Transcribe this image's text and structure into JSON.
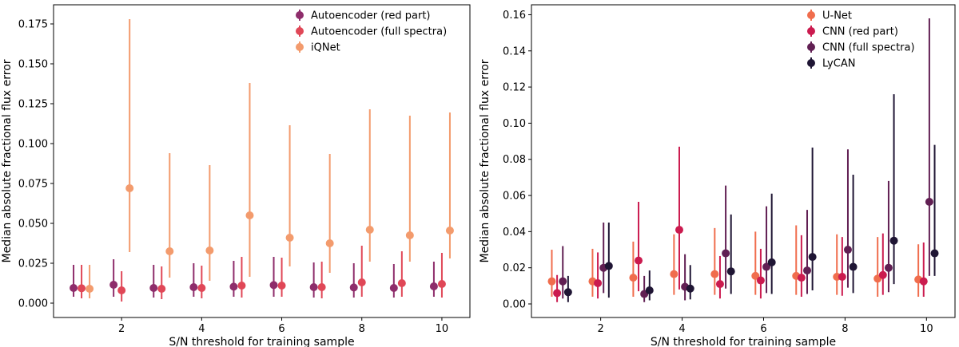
{
  "chart_data": [
    {
      "type": "errorbar",
      "panel": "left",
      "xlabel": "S/N threshold for training sample",
      "ylabel": "Median absolute fractional flux error",
      "xlim": [
        0.3,
        10.7
      ],
      "ylim": [
        -0.009,
        0.187
      ],
      "xticks": [
        2,
        4,
        6,
        8,
        10
      ],
      "yticks": [
        0.0,
        0.025,
        0.05,
        0.075,
        0.1,
        0.125,
        0.15,
        0.175
      ],
      "ytick_labels": [
        "0.000",
        "0.025",
        "0.050",
        "0.075",
        "0.100",
        "0.125",
        "0.150",
        "0.175"
      ],
      "legend_position": "top-right",
      "x": [
        1,
        2,
        3,
        4,
        5,
        6,
        7,
        8,
        9,
        10
      ],
      "series": [
        {
          "name": "Autoencoder (red part)",
          "color": "#8e2d6b",
          "offset": -0.2,
          "values": [
            0.0095,
            0.0115,
            0.0095,
            0.01,
            0.0103,
            0.0113,
            0.01,
            0.0098,
            0.0095,
            0.0105
          ],
          "low": [
            0.004,
            0.004,
            0.0035,
            0.004,
            0.004,
            0.004,
            0.0035,
            0.0035,
            0.0035,
            0.004
          ],
          "high": [
            0.024,
            0.0275,
            0.024,
            0.025,
            0.0265,
            0.029,
            0.0255,
            0.025,
            0.0245,
            0.026
          ]
        },
        {
          "name": "Autoencoder (full spectra)",
          "color": "#e04757",
          "offset": 0.0,
          "values": [
            0.0093,
            0.008,
            0.009,
            0.0095,
            0.011,
            0.011,
            0.01,
            0.013,
            0.0125,
            0.012
          ],
          "low": [
            0.003,
            0.001,
            0.0025,
            0.003,
            0.0035,
            0.004,
            0.003,
            0.004,
            0.004,
            0.0035
          ],
          "high": [
            0.024,
            0.02,
            0.023,
            0.0235,
            0.029,
            0.0285,
            0.026,
            0.036,
            0.0325,
            0.0315
          ]
        },
        {
          "name": "iQNet",
          "color": "#f39b6d",
          "offset": 0.2,
          "values": [
            0.009,
            0.072,
            0.0325,
            0.033,
            0.055,
            0.041,
            0.0375,
            0.046,
            0.0425,
            0.0455
          ],
          "low": [
            0.003,
            0.032,
            0.016,
            0.014,
            0.0165,
            0.023,
            0.019,
            0.026,
            0.026,
            0.028
          ],
          "high": [
            0.024,
            0.178,
            0.094,
            0.0865,
            0.138,
            0.1115,
            0.0935,
            0.1215,
            0.1175,
            0.1195
          ]
        }
      ]
    },
    {
      "type": "errorbar",
      "panel": "right",
      "xlabel": "S/N threshold for training sample",
      "ylabel": "Median absolute fractional flux error",
      "xlim": [
        0.3,
        10.7
      ],
      "ylim": [
        -0.0075,
        0.1655
      ],
      "xticks": [
        2,
        4,
        6,
        8,
        10
      ],
      "yticks": [
        0.0,
        0.02,
        0.04,
        0.06,
        0.08,
        0.1,
        0.12,
        0.14,
        0.16
      ],
      "ytick_labels": [
        "0.00",
        "0.02",
        "0.04",
        "0.06",
        "0.08",
        "0.10",
        "0.12",
        "0.14",
        "0.16"
      ],
      "legend_position": "top-right",
      "x": [
        1,
        2,
        3,
        4,
        5,
        6,
        7,
        8,
        9,
        10
      ],
      "series": [
        {
          "name": "U-Net",
          "color": "#f06d4d",
          "offset": -0.2,
          "values": [
            0.0125,
            0.0125,
            0.0145,
            0.0165,
            0.0165,
            0.0155,
            0.0155,
            0.015,
            0.014,
            0.0135
          ],
          "low": [
            0.004,
            0.004,
            0.004,
            0.005,
            0.005,
            0.005,
            0.005,
            0.005,
            0.004,
            0.004
          ],
          "high": [
            0.03,
            0.0305,
            0.0345,
            0.0385,
            0.042,
            0.04,
            0.0435,
            0.0385,
            0.037,
            0.033
          ]
        },
        {
          "name": "CNN (red part)",
          "color": "#cb1b4f",
          "offset": -0.07,
          "values": [
            0.006,
            0.0115,
            0.024,
            0.041,
            0.011,
            0.013,
            0.0145,
            0.015,
            0.016,
            0.0125
          ],
          "low": [
            0.001,
            0.003,
            0.007,
            0.008,
            0.003,
            0.003,
            0.004,
            0.0045,
            0.005,
            0.004
          ],
          "high": [
            0.016,
            0.0285,
            0.0565,
            0.087,
            0.0265,
            0.0305,
            0.038,
            0.037,
            0.039,
            0.034
          ]
        },
        {
          "name": "CNN (full spectra)",
          "color": "#611f53",
          "offset": 0.07,
          "values": [
            0.0125,
            0.02,
            0.0055,
            0.0095,
            0.028,
            0.0205,
            0.0185,
            0.03,
            0.02,
            0.0565
          ],
          "low": [
            0.003,
            0.006,
            0.001,
            0.002,
            0.0085,
            0.006,
            0.0055,
            0.009,
            0.0065,
            0.0155
          ],
          "high": [
            0.032,
            0.045,
            0.0155,
            0.0275,
            0.0655,
            0.054,
            0.052,
            0.0855,
            0.068,
            0.158
          ]
        },
        {
          "name": "LyCAN",
          "color": "#1f1534",
          "offset": 0.2,
          "values": [
            0.0065,
            0.021,
            0.0075,
            0.0085,
            0.018,
            0.023,
            0.026,
            0.0205,
            0.035,
            0.028
          ],
          "low": [
            0.001,
            0.0035,
            0.002,
            0.0025,
            0.0055,
            0.0055,
            0.0075,
            0.006,
            0.011,
            0.0155
          ],
          "high": [
            0.0155,
            0.045,
            0.0185,
            0.0215,
            0.0495,
            0.061,
            0.0865,
            0.0715,
            0.116,
            0.088
          ]
        }
      ]
    }
  ]
}
